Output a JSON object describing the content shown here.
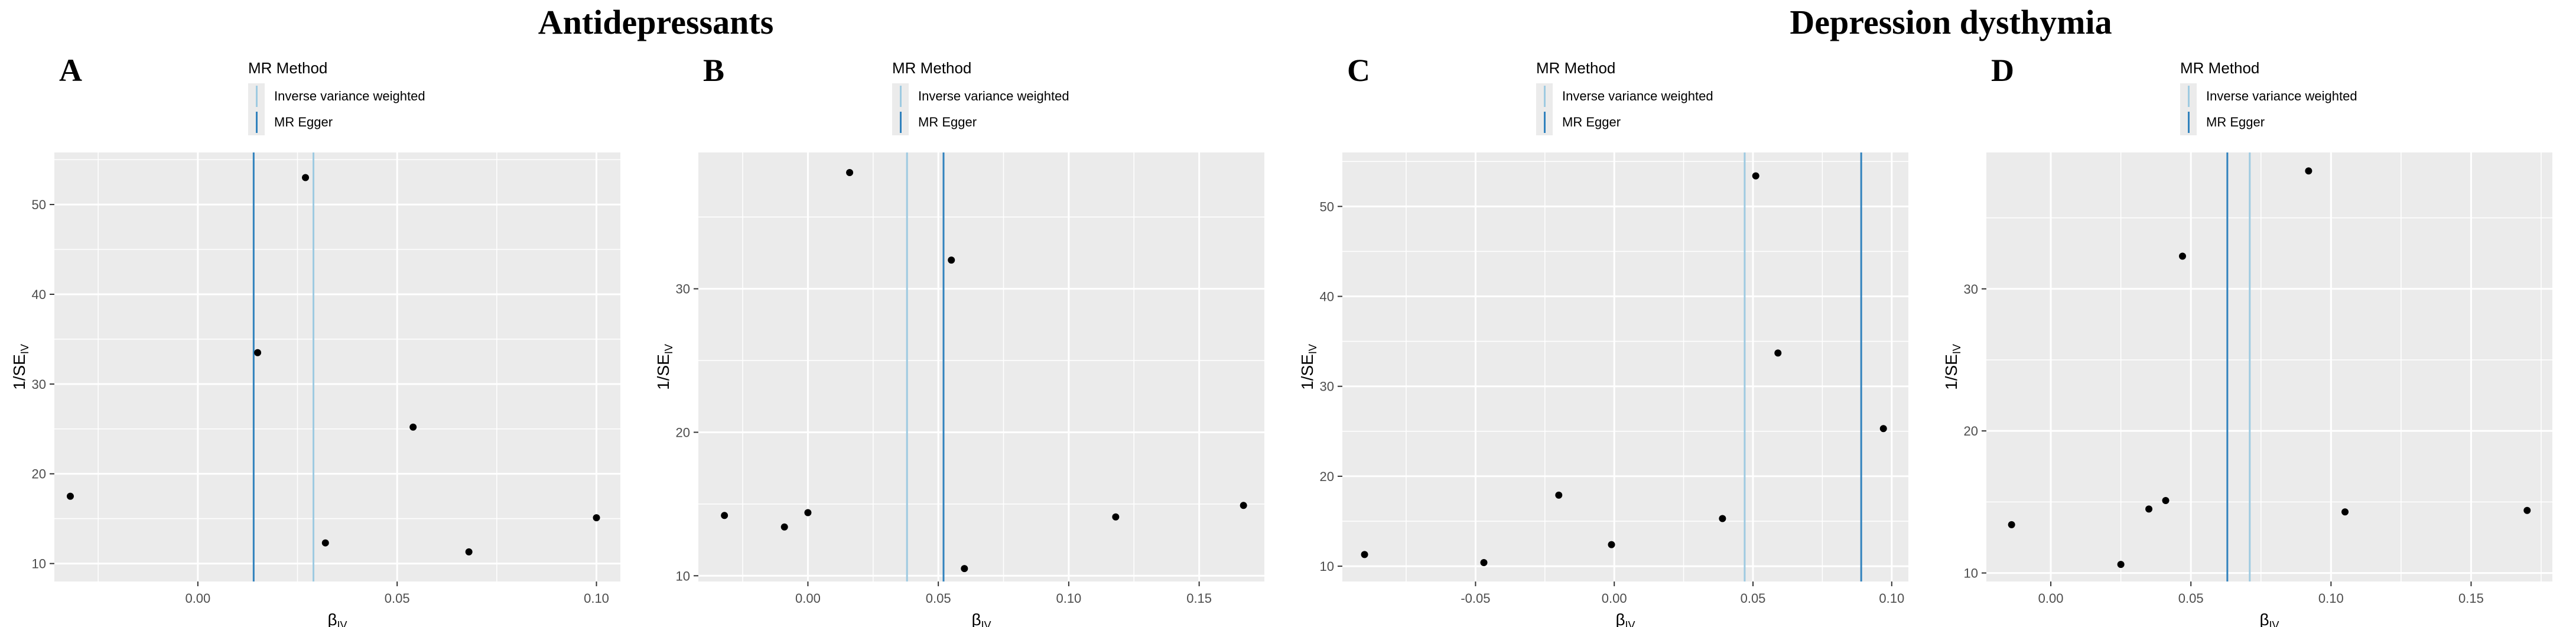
{
  "titles": {
    "left": "Antidepressants",
    "right": "Depression dysthymia"
  },
  "legend": {
    "title": "MR Method",
    "items": [
      {
        "label": "Inverse variance weighted",
        "color": "#9ecae1"
      },
      {
        "label": "MR Egger",
        "color": "#3182bd"
      }
    ]
  },
  "axis_labels": {
    "x_main": "β",
    "x_sub": "IV",
    "y_main": "1/SE",
    "y_sub": "IV"
  },
  "colors": {
    "panel_bg": "#ebebeb",
    "grid": "#ffffff",
    "point": "#000000",
    "tick": "#4d4d4d"
  },
  "chart_data": [
    {
      "type": "scatter",
      "panel": "A",
      "xlim": [
        -0.036,
        0.106
      ],
      "ylim": [
        8.0,
        55.8
      ],
      "xticks": [
        0.0,
        0.05,
        0.1
      ],
      "xtick_labels": [
        "0.00",
        "0.05",
        "0.10"
      ],
      "yticks": [
        10,
        20,
        30,
        40,
        50
      ],
      "ytick_labels": [
        "10",
        "20",
        "30",
        "40",
        "50"
      ],
      "x": [
        -0.032,
        0.015,
        0.027,
        0.032,
        0.054,
        0.068,
        0.1
      ],
      "y": [
        17.5,
        33.5,
        53.0,
        12.3,
        25.2,
        11.3,
        15.1
      ],
      "vlines": [
        {
          "method": "MR Egger",
          "x": 0.014
        },
        {
          "method": "Inverse variance weighted",
          "x": 0.029
        }
      ]
    },
    {
      "type": "scatter",
      "panel": "B",
      "xlim": [
        -0.042,
        0.175
      ],
      "ylim": [
        9.6,
        39.5
      ],
      "xticks": [
        0.0,
        0.05,
        0.1,
        0.15
      ],
      "xtick_labels": [
        "0.00",
        "0.05",
        "0.10",
        "0.15"
      ],
      "yticks": [
        10,
        20,
        30
      ],
      "ytick_labels": [
        "10",
        "20",
        "30"
      ],
      "x": [
        -0.032,
        -0.009,
        0.0,
        0.016,
        0.055,
        0.06,
        0.118,
        0.167
      ],
      "y": [
        14.2,
        13.4,
        14.4,
        38.1,
        32.0,
        10.5,
        14.1,
        14.9
      ],
      "vlines": [
        {
          "method": "Inverse variance weighted",
          "x": 0.038
        },
        {
          "method": "MR Egger",
          "x": 0.052
        }
      ]
    },
    {
      "type": "scatter",
      "panel": "C",
      "xlim": [
        -0.098,
        0.106
      ],
      "ylim": [
        8.3,
        56.0
      ],
      "xticks": [
        -0.05,
        0.0,
        0.05,
        0.1
      ],
      "xtick_labels": [
        "-0.05",
        "0.00",
        "0.05",
        "0.10"
      ],
      "yticks": [
        10,
        20,
        30,
        40,
        50
      ],
      "ytick_labels": [
        "10",
        "20",
        "30",
        "40",
        "50"
      ],
      "x": [
        -0.09,
        -0.047,
        -0.02,
        -0.001,
        0.039,
        0.051,
        0.059,
        0.097
      ],
      "y": [
        11.3,
        10.4,
        17.9,
        12.4,
        15.3,
        53.4,
        33.7,
        25.3
      ],
      "vlines": [
        {
          "method": "Inverse variance weighted",
          "x": 0.047
        },
        {
          "method": "MR Egger",
          "x": 0.089
        }
      ]
    },
    {
      "type": "scatter",
      "panel": "D",
      "xlim": [
        -0.023,
        0.179
      ],
      "ylim": [
        9.4,
        39.6
      ],
      "xticks": [
        0.0,
        0.05,
        0.1,
        0.15
      ],
      "xtick_labels": [
        "0.00",
        "0.05",
        "0.10",
        "0.15"
      ],
      "yticks": [
        10,
        20,
        30
      ],
      "ytick_labels": [
        "10",
        "20",
        "30"
      ],
      "x": [
        -0.014,
        0.025,
        0.035,
        0.041,
        0.047,
        0.092,
        0.105,
        0.17
      ],
      "y": [
        13.4,
        10.6,
        14.5,
        15.1,
        32.3,
        38.3,
        14.3,
        14.4
      ],
      "vlines": [
        {
          "method": "MR Egger",
          "x": 0.063
        },
        {
          "method": "Inverse variance weighted",
          "x": 0.071
        }
      ]
    }
  ]
}
